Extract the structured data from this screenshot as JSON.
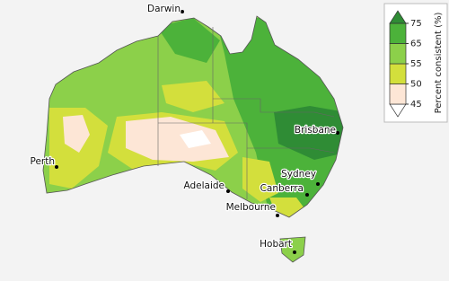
{
  "map": {
    "cities": [
      {
        "name": "Darwin"
      },
      {
        "name": "Brisbane"
      },
      {
        "name": "Perth"
      },
      {
        "name": "Sydney"
      },
      {
        "name": "Adelaide"
      },
      {
        "name": "Canberra"
      },
      {
        "name": "Melbourne"
      },
      {
        "name": "Hobart"
      }
    ],
    "legend": {
      "title": "Percent consistent (%)",
      "levels": [
        45,
        50,
        55,
        65,
        75
      ],
      "colors": [
        "#ffffff",
        "#fde6d6",
        "#d3df3c",
        "#8cd04a",
        "#4cb23a",
        "#2f8c35"
      ]
    }
  }
}
